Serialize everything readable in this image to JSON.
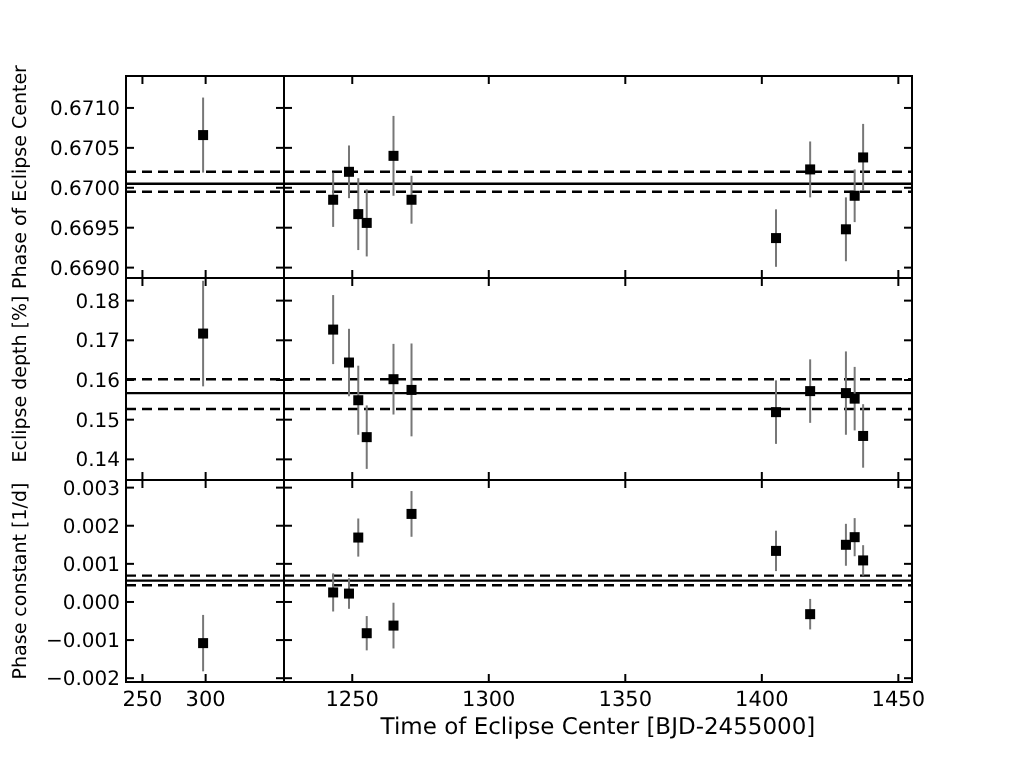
{
  "chart_data": [
    {
      "type": "scatter",
      "ylabel": "Phase of Eclipse Center",
      "x": [
        298
      ],
      "values": [
        0.67066
      ],
      "errors": [
        0.00047
      ],
      "color": "#000000",
      "marker": "square",
      "xlim": [
        237,
        362
      ],
      "xticks": [
        250,
        300
      ],
      "ylim": [
        0.66887,
        0.6714
      ],
      "yticks": [
        {
          "value": 0.669,
          "label": "0.6690"
        },
        {
          "value": 0.6695,
          "label": "0.6695"
        },
        {
          "value": 0.67,
          "label": "0.6700"
        },
        {
          "value": 0.6705,
          "label": "0.6705"
        },
        {
          "value": 0.671,
          "label": "0.6710"
        }
      ],
      "tick_labels": "y",
      "grid": false,
      "ref_lines": [
        {
          "axis": "y",
          "value": 0.67005,
          "color": "#000000",
          "line_style": "solid"
        },
        {
          "axis": "y",
          "value": 0.6702,
          "color": "#000000",
          "line_style": "dashed"
        },
        {
          "axis": "y",
          "value": 0.66995,
          "color": "#000000",
          "line_style": "dashed"
        }
      ]
    },
    {
      "type": "scatter",
      "x": [
        1243,
        1248.8,
        1252.2,
        1255.3,
        1265.1,
        1271.7,
        1405.2,
        1417.7,
        1430.8,
        1434,
        1437.1
      ],
      "values": [
        0.66985,
        0.6702,
        0.66967,
        0.66956,
        0.6704,
        0.66985,
        0.66937,
        0.67023,
        0.66948,
        0.6699,
        0.67038
      ],
      "errors": [
        0.00034,
        0.00033,
        0.00045,
        0.00042,
        0.0005,
        0.0003,
        0.00036,
        0.00035,
        0.0004,
        0.00033,
        0.00042
      ],
      "color": "#000000",
      "marker": "square",
      "xlim": [
        1225,
        1455
      ],
      "xticks": [
        1250,
        1300,
        1350,
        1400,
        1450
      ],
      "ylim": [
        0.66887,
        0.6714
      ],
      "yticks": [
        0.669,
        0.6695,
        0.67,
        0.6705,
        0.671
      ],
      "tick_labels": false,
      "grid": false,
      "ref_lines": [
        {
          "axis": "y",
          "value": 0.67005,
          "color": "#000000",
          "line_style": "solid"
        },
        {
          "axis": "y",
          "value": 0.6702,
          "color": "#000000",
          "line_style": "dashed"
        },
        {
          "axis": "y",
          "value": 0.66995,
          "color": "#000000",
          "line_style": "dashed"
        }
      ]
    },
    {
      "type": "scatter",
      "ylabel": "Eclipse depth [%]",
      "x": [
        298
      ],
      "values": [
        0.1717
      ],
      "errors": [
        0.0133
      ],
      "color": "#000000",
      "marker": "square",
      "xlim": [
        237,
        362
      ],
      "xticks": [
        250,
        300
      ],
      "ylim": [
        0.1348,
        0.1857
      ],
      "yticks": [
        0.14,
        0.15,
        0.16,
        0.17,
        0.18
      ],
      "tick_labels": "y",
      "grid": false,
      "ref_lines": [
        {
          "axis": "y",
          "value": 0.1567,
          "color": "#000000",
          "line_style": "solid"
        },
        {
          "axis": "y",
          "value": 0.1602,
          "color": "#000000",
          "line_style": "dashed"
        },
        {
          "axis": "y",
          "value": 0.1527,
          "color": "#000000",
          "line_style": "dashed"
        }
      ]
    },
    {
      "type": "scatter",
      "x": [
        1243,
        1248.8,
        1252.2,
        1255.3,
        1265.1,
        1271.7,
        1405.2,
        1417.7,
        1430.8,
        1434,
        1437.1
      ],
      "values": [
        0.1727,
        0.1644,
        0.1549,
        0.1456,
        0.1602,
        0.1575,
        0.1519,
        0.1572,
        0.1567,
        0.1553,
        0.1459
      ],
      "errors": [
        0.0087,
        0.0085,
        0.0087,
        0.008,
        0.0089,
        0.0117,
        0.008,
        0.008,
        0.0105,
        0.008,
        0.008
      ],
      "color": "#000000",
      "marker": "square",
      "xlim": [
        1225,
        1455
      ],
      "xticks": [
        1250,
        1300,
        1350,
        1400,
        1450
      ],
      "ylim": [
        0.1348,
        0.1857
      ],
      "yticks": [
        0.14,
        0.15,
        0.16,
        0.17,
        0.18
      ],
      "tick_labels": false,
      "grid": false,
      "ref_lines": [
        {
          "axis": "y",
          "value": 0.1567,
          "color": "#000000",
          "line_style": "solid"
        },
        {
          "axis": "y",
          "value": 0.1602,
          "color": "#000000",
          "line_style": "dashed"
        },
        {
          "axis": "y",
          "value": 0.1527,
          "color": "#000000",
          "line_style": "dashed"
        }
      ]
    },
    {
      "type": "scatter",
      "ylabel": "Phase constant [1/d]",
      "x": [
        298
      ],
      "values": [
        -0.00108
      ],
      "errors": [
        0.00074
      ],
      "color": "#000000",
      "marker": "square",
      "xlim": [
        237,
        362
      ],
      "xticks": [
        250,
        300
      ],
      "ylim": [
        -0.0021,
        0.0032
      ],
      "yticks": [
        {
          "value": -0.002,
          "label": "−0.002"
        },
        {
          "value": -0.001,
          "label": "−0.001"
        },
        {
          "value": 0,
          "label": "0.000"
        },
        {
          "value": 0.001,
          "label": "0.001"
        },
        {
          "value": 0.002,
          "label": "0.002"
        },
        {
          "value": 0.003,
          "label": "0.003"
        }
      ],
      "grid": false,
      "ref_lines": [
        {
          "axis": "y",
          "value": 0.00056,
          "color": "#000000",
          "line_style": "solid"
        },
        {
          "axis": "y",
          "value": 0.00069,
          "color": "#000000",
          "line_style": "dashed"
        },
        {
          "axis": "y",
          "value": 0.00044,
          "color": "#000000",
          "line_style": "dashed"
        }
      ]
    },
    {
      "type": "scatter",
      "xlabel": "Time of Eclipse Center [BJD-2455000]",
      "x": [
        1243,
        1248.8,
        1252.2,
        1255.3,
        1265.1,
        1271.7,
        1405.2,
        1417.7,
        1430.8,
        1434,
        1437.1
      ],
      "values": [
        0.00025,
        0.00022,
        0.00169,
        -0.00082,
        -0.00062,
        0.00231,
        0.00134,
        -0.00032,
        0.0015,
        0.0017,
        0.00109
      ],
      "errors": [
        0.0005,
        0.0004,
        0.0005,
        0.00045,
        0.0006,
        0.0006,
        0.00053,
        0.0004,
        0.00055,
        0.0005,
        0.0004
      ],
      "color": "#000000",
      "marker": "square",
      "xlim": [
        1225,
        1455
      ],
      "xticks": [
        1250,
        1300,
        1350,
        1400,
        1450
      ],
      "ylim": [
        -0.0021,
        0.0032
      ],
      "yticks": [
        -0.002,
        -0.001,
        0,
        0.001,
        0.002,
        0.003
      ],
      "tick_labels": "x",
      "grid": false,
      "ref_lines": [
        {
          "axis": "y",
          "value": 0.00056,
          "color": "#000000",
          "line_style": "solid"
        },
        {
          "axis": "y",
          "value": 0.00069,
          "color": "#000000",
          "line_style": "dashed"
        },
        {
          "axis": "y",
          "value": 0.00044,
          "color": "#000000",
          "line_style": "dashed"
        }
      ]
    }
  ]
}
